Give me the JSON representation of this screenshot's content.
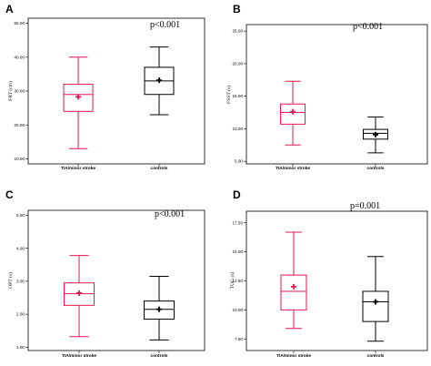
{
  "chart_data": [
    {
      "type": "box",
      "panel": "A",
      "ylabel": "FRT (cm)",
      "ylim": [
        8.5,
        51.5
      ],
      "yticks": [
        10,
        20,
        30,
        40,
        50
      ],
      "tick_labels": [
        "10.00",
        "20.00",
        "30.00",
        "40.00",
        "50.00"
      ],
      "annotation": "p<0.001",
      "categories": [
        "TIA/minor stroke",
        "controls"
      ],
      "colors": [
        "#e8174d",
        "#000000"
      ],
      "boxes": [
        {
          "category": "TIA/minor stroke",
          "min": 13,
          "q1": 24,
          "median": 29,
          "q3": 32,
          "max": 40,
          "mean": 28.3
        },
        {
          "category": "controls",
          "min": 23,
          "q1": 29,
          "median": 33,
          "q3": 37,
          "max": 43,
          "mean": 33.2
        }
      ]
    },
    {
      "type": "box",
      "panel": "B",
      "ylabel": "FSST (s)",
      "ylim": [
        4.6,
        26.0
      ],
      "yticks": [
        5,
        10,
        15,
        20,
        25
      ],
      "tick_labels": [
        "5.00",
        "10.00",
        "15.00",
        "20.00",
        "25.00"
      ],
      "annotation": "p<0.001",
      "categories": [
        "TIA/minor stroke",
        "controls"
      ],
      "colors": [
        "#e8174d",
        "#000000"
      ],
      "boxes": [
        {
          "category": "TIA/minor stroke",
          "min": 7.5,
          "q1": 10.7,
          "median": 12.5,
          "q3": 13.8,
          "max": 17.3,
          "mean": 12.6
        },
        {
          "category": "controls",
          "min": 6.3,
          "q1": 8.4,
          "median": 9.3,
          "q3": 9.9,
          "max": 11.8,
          "mean": 9.1
        }
      ]
    },
    {
      "type": "box",
      "panel": "C",
      "ylabel": "OPT (s)",
      "ylim": [
        0.9,
        5.15
      ],
      "yticks": [
        1,
        2,
        3,
        4,
        5
      ],
      "tick_labels": [
        "1.00",
        "2.00",
        "3.00",
        "4.00",
        "5.00"
      ],
      "annotation": "p<0.001",
      "categories": [
        "TIA/minor stroke",
        "controls"
      ],
      "colors": [
        "#e8174d",
        "#000000"
      ],
      "boxes": [
        {
          "category": "TIA/minor stroke",
          "min": 1.32,
          "q1": 2.27,
          "median": 2.62,
          "q3": 2.95,
          "max": 3.78,
          "mean": 2.64
        },
        {
          "category": "controls",
          "min": 1.22,
          "q1": 1.85,
          "median": 2.15,
          "q3": 2.4,
          "max": 3.15,
          "mean": 2.15
        }
      ]
    },
    {
      "type": "box",
      "panel": "D",
      "ylabel": "TUG (s)",
      "ylim": [
        6.5,
        18.5
      ],
      "yticks": [
        7.5,
        10,
        12.5,
        15,
        17.5
      ],
      "tick_labels": [
        "7.50",
        "10.00",
        "12.50",
        "15.00",
        "17.50"
      ],
      "annotation": "p=0.001",
      "categories": [
        "TIA/minor stroke",
        "controls"
      ],
      "colors": [
        "#e8174d",
        "#000000"
      ],
      "boxes": [
        {
          "category": "TIA/minor stroke",
          "min": 8.4,
          "q1": 10.0,
          "median": 11.6,
          "q3": 13.0,
          "max": 16.7,
          "mean": 12.0
        },
        {
          "category": "controls",
          "min": 7.3,
          "q1": 9.0,
          "median": 10.7,
          "q3": 11.6,
          "max": 14.6,
          "mean": 10.7
        }
      ]
    }
  ]
}
